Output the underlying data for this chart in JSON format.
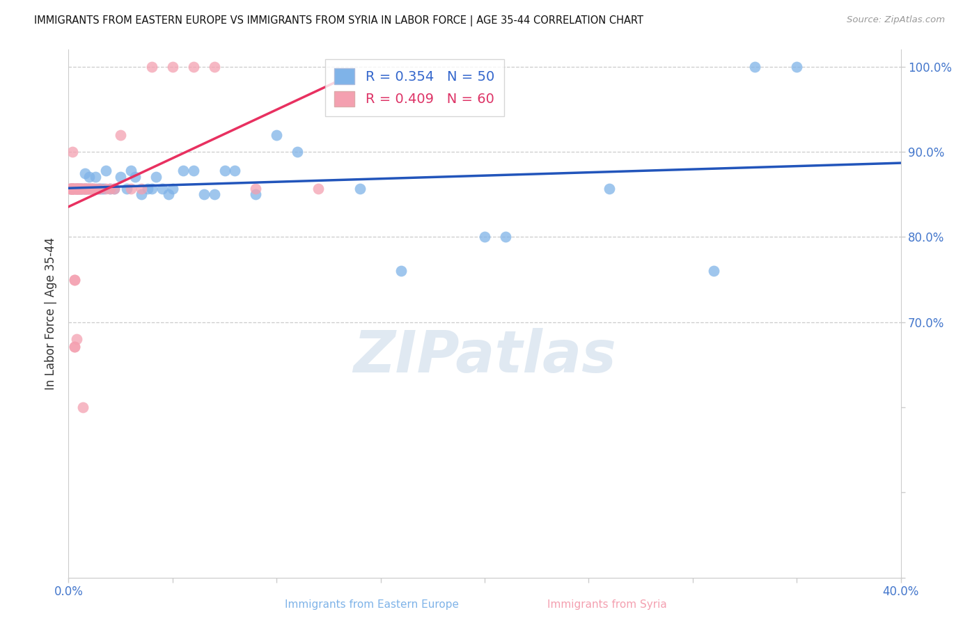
{
  "title": "IMMIGRANTS FROM EASTERN EUROPE VS IMMIGRANTS FROM SYRIA IN LABOR FORCE | AGE 35-44 CORRELATION CHART",
  "source": "Source: ZipAtlas.com",
  "ylabel": "In Labor Force | Age 35-44",
  "x_min": 0.0,
  "x_max": 0.4,
  "y_min": 0.4,
  "y_max": 1.02,
  "x_ticks": [
    0.0,
    0.05,
    0.1,
    0.15,
    0.2,
    0.25,
    0.3,
    0.35,
    0.4
  ],
  "x_tick_labels": [
    "0.0%",
    "",
    "",
    "",
    "",
    "",
    "",
    "",
    "40.0%"
  ],
  "y_ticks": [
    0.4,
    0.5,
    0.6,
    0.7,
    0.8,
    0.9,
    1.0
  ],
  "y_tick_labels_right": [
    "",
    "",
    "",
    "70.0%",
    "80.0%",
    "90.0%",
    "100.0%"
  ],
  "blue_color": "#7FB3E8",
  "pink_color": "#F4A0B0",
  "blue_line_color": "#2255BB",
  "pink_line_color": "#E83060",
  "legend_blue_R": "R = 0.354",
  "legend_blue_N": "N = 50",
  "legend_pink_R": "R = 0.409",
  "legend_pink_N": "N = 60",
  "watermark": "ZIPatlas",
  "blue_scatter_x": [
    0.001,
    0.003,
    0.004,
    0.005,
    0.006,
    0.006,
    0.007,
    0.008,
    0.008,
    0.009,
    0.01,
    0.01,
    0.011,
    0.012,
    0.013,
    0.014,
    0.015,
    0.016,
    0.017,
    0.018,
    0.02,
    0.022,
    0.025,
    0.028,
    0.03,
    0.032,
    0.035,
    0.038,
    0.04,
    0.042,
    0.045,
    0.048,
    0.05,
    0.055,
    0.06,
    0.065,
    0.07,
    0.075,
    0.08,
    0.09,
    0.1,
    0.11,
    0.14,
    0.16,
    0.2,
    0.21,
    0.26,
    0.31,
    0.33,
    0.35
  ],
  "blue_scatter_y": [
    0.857,
    0.857,
    0.857,
    0.857,
    0.857,
    0.857,
    0.857,
    0.857,
    0.875,
    0.857,
    0.857,
    0.871,
    0.857,
    0.857,
    0.871,
    0.857,
    0.857,
    0.857,
    0.857,
    0.878,
    0.857,
    0.857,
    0.871,
    0.857,
    0.878,
    0.871,
    0.85,
    0.857,
    0.857,
    0.871,
    0.857,
    0.85,
    0.857,
    0.878,
    0.878,
    0.85,
    0.85,
    0.878,
    0.878,
    0.85,
    0.92,
    0.9,
    0.857,
    0.76,
    0.8,
    0.8,
    0.857,
    0.76,
    1.0,
    1.0
  ],
  "pink_scatter_x": [
    0.001,
    0.001,
    0.001,
    0.001,
    0.002,
    0.002,
    0.002,
    0.002,
    0.002,
    0.002,
    0.002,
    0.002,
    0.002,
    0.003,
    0.003,
    0.003,
    0.003,
    0.003,
    0.003,
    0.003,
    0.004,
    0.004,
    0.004,
    0.004,
    0.004,
    0.004,
    0.005,
    0.005,
    0.005,
    0.005,
    0.006,
    0.006,
    0.006,
    0.007,
    0.007,
    0.007,
    0.008,
    0.008,
    0.008,
    0.009,
    0.009,
    0.01,
    0.01,
    0.011,
    0.011,
    0.012,
    0.013,
    0.015,
    0.018,
    0.02,
    0.022,
    0.025,
    0.03,
    0.035,
    0.04,
    0.05,
    0.06,
    0.07,
    0.09,
    0.12
  ],
  "pink_scatter_y": [
    0.857,
    0.857,
    0.857,
    0.857,
    0.857,
    0.857,
    0.857,
    0.857,
    0.857,
    0.857,
    0.857,
    0.9,
    0.857,
    0.857,
    0.857,
    0.857,
    0.75,
    0.75,
    0.671,
    0.671,
    0.857,
    0.857,
    0.857,
    0.857,
    0.857,
    0.68,
    0.857,
    0.857,
    0.857,
    0.857,
    0.857,
    0.857,
    0.857,
    0.857,
    0.857,
    0.6,
    0.857,
    0.857,
    0.857,
    0.857,
    0.857,
    0.857,
    0.857,
    0.857,
    0.857,
    0.857,
    0.857,
    0.857,
    0.857,
    0.857,
    0.857,
    0.92,
    0.857,
    0.857,
    1.0,
    1.0,
    1.0,
    1.0,
    0.857,
    0.857
  ]
}
